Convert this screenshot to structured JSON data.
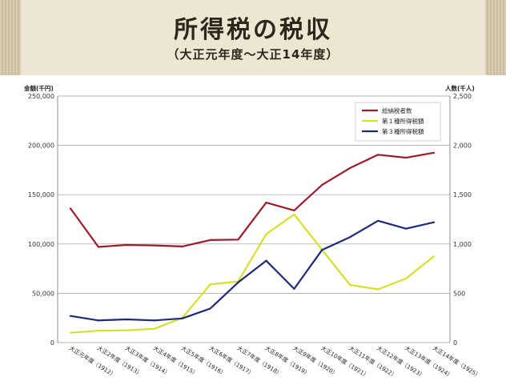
{
  "header": {
    "title": "所得税の税収",
    "subtitle": "（大正元年度〜大正14年度）"
  },
  "chart_data": {
    "type": "line",
    "title": "所得税の税収",
    "subtitle": "（大正元年度〜大正14年度）",
    "left_axis_label": "金額(千円)",
    "right_axis_label": "人数(千人)",
    "left_ylim": [
      0,
      250000
    ],
    "right_ylim": [
      0,
      2500
    ],
    "left_ticks": [
      "0",
      "50,000",
      "100,000",
      "150,000",
      "200,000",
      "250,000"
    ],
    "right_ticks": [
      "0",
      "500",
      "1,000",
      "1,500",
      "2,000",
      "2,500"
    ],
    "categories": [
      "大正元年度（1912）",
      "大正2年度（1913）",
      "大正3年度（1914）",
      "大正4年度（1915）",
      "大正5年度（1916）",
      "大正6年度（1917）",
      "大正7年度（1918）",
      "大正8年度（1919）",
      "大正9年度（1920）",
      "大正10年度（1921）",
      "大正11年度（1922）",
      "大正12年度（1923）",
      "大正13年度（1924）",
      "大正14年度（1925）"
    ],
    "grid": true,
    "legend_position": "top-right",
    "series": [
      {
        "name": "総納税者数",
        "axis": "right",
        "color": "#9b1b2a",
        "values": [
          1360,
          970,
          990,
          985,
          975,
          1040,
          1045,
          1420,
          1340,
          1600,
          1770,
          1905,
          1875,
          1925
        ]
      },
      {
        "name": "第１種所得税額",
        "axis": "left",
        "color": "#d7df2c",
        "values": [
          10000,
          12000,
          12500,
          14000,
          25000,
          59000,
          62000,
          110000,
          130000,
          94000,
          58500,
          54000,
          65000,
          87500
        ]
      },
      {
        "name": "第３種所得税額",
        "axis": "left",
        "color": "#1d2a7a",
        "values": [
          27000,
          22500,
          23500,
          22500,
          24500,
          34500,
          61000,
          83000,
          54500,
          94000,
          107000,
          123500,
          115500,
          122000
        ]
      }
    ]
  }
}
